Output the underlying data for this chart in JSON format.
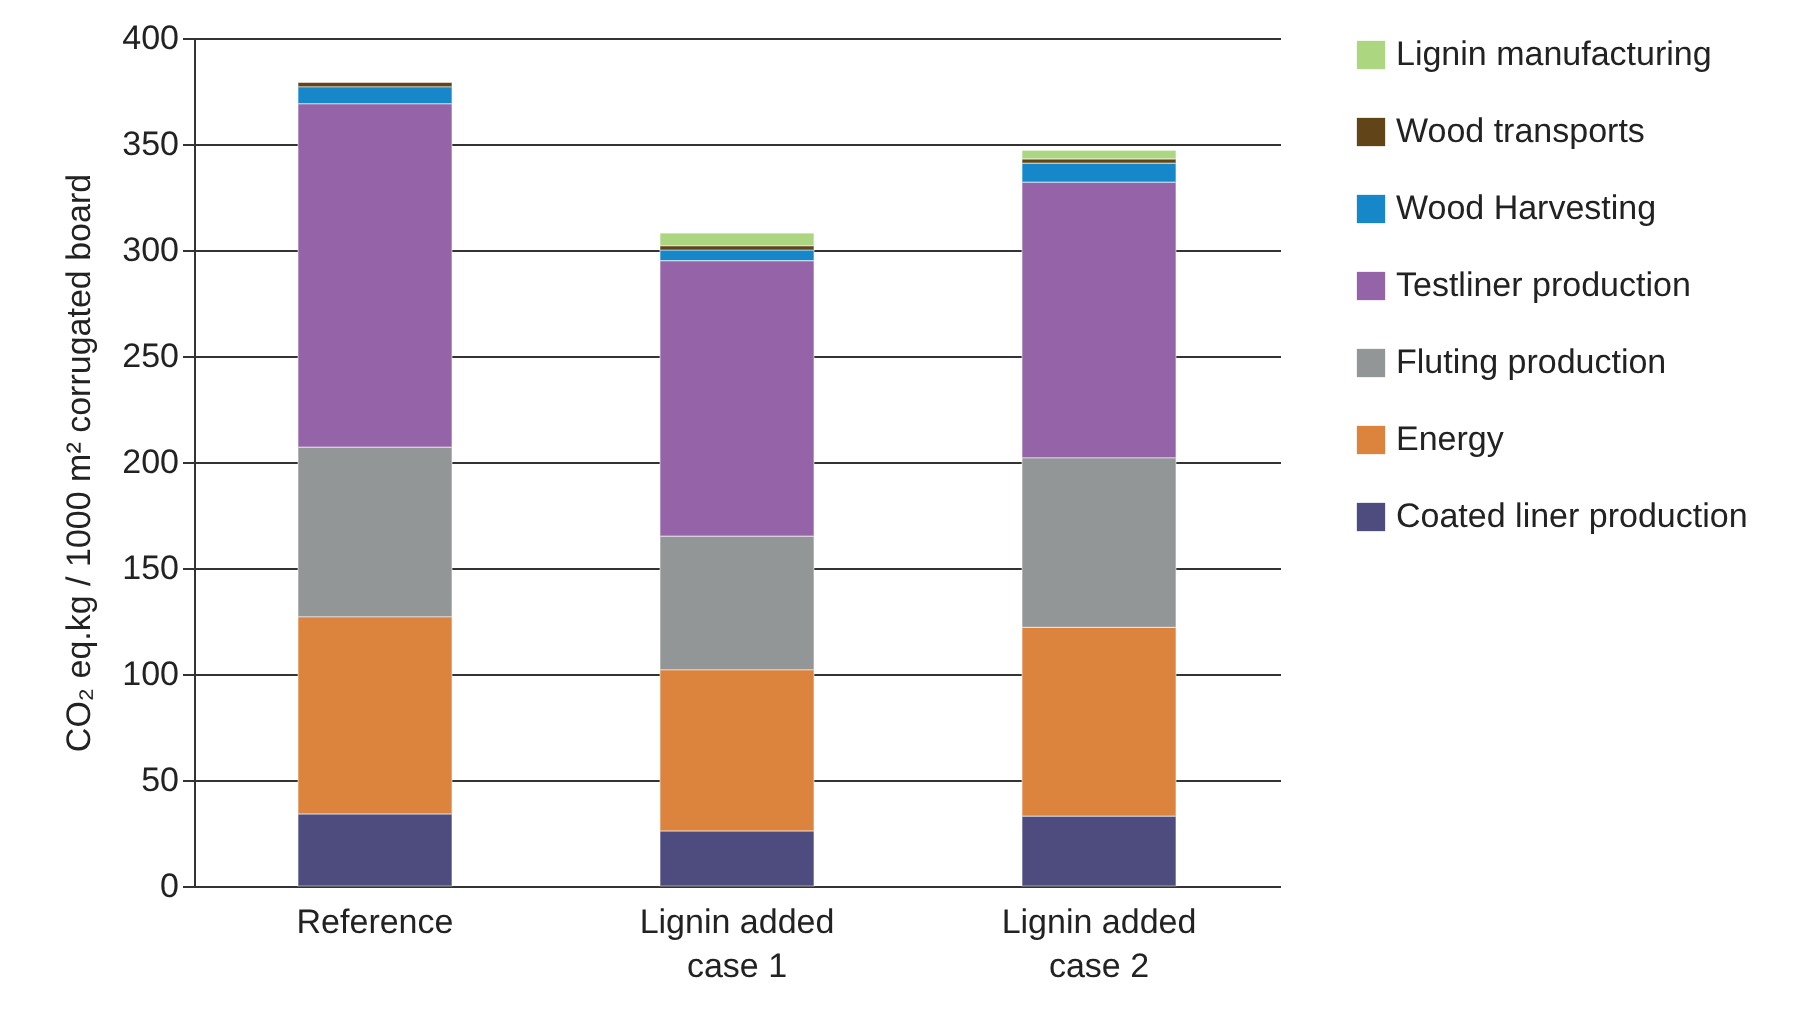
{
  "chart_data": {
    "type": "bar",
    "stacked": true,
    "categories": [
      "Reference",
      "Lignin added\ncase 1",
      "Lignin added\ncase 2"
    ],
    "ylabel": "CO₂ eq.kg / 1000 m² corrugated board",
    "ylim": [
      0,
      400
    ],
    "yticks": [
      0,
      50,
      100,
      150,
      200,
      250,
      300,
      350,
      400
    ],
    "grid": "y",
    "legend": "right",
    "series": [
      {
        "name": "Coated liner production",
        "color": "#4e4b7e",
        "values": [
          34,
          26,
          33
        ]
      },
      {
        "name": "Energy",
        "color": "#dc833e",
        "values": [
          93,
          76,
          89
        ]
      },
      {
        "name": "Fluting production",
        "color": "#939696",
        "values": [
          80,
          63,
          80
        ]
      },
      {
        "name": "Testliner production",
        "color": "#9463a8",
        "values": [
          162,
          130,
          130
        ]
      },
      {
        "name": "Wood Harvesting",
        "color": "#1688c9",
        "values": [
          8,
          5,
          9
        ]
      },
      {
        "name": "Wood transports",
        "color": "#614418",
        "values": [
          2,
          2,
          2
        ]
      },
      {
        "name": "Lignin manufacturing",
        "color": "#add681",
        "values": [
          null,
          6,
          4
        ]
      }
    ]
  }
}
